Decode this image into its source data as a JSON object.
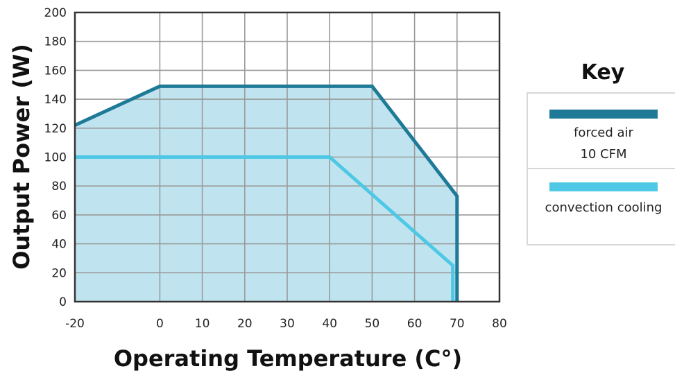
{
  "chart_data": {
    "type": "area",
    "xlabel": "Operating Temperature (C°)",
    "ylabel": "Output Power (W)",
    "xlim": [
      -20,
      80
    ],
    "ylim": [
      0,
      200
    ],
    "x_ticks": [
      "-20",
      "0",
      "10",
      "20",
      "30",
      "40",
      "50",
      "60",
      "70",
      "80"
    ],
    "y_ticks": [
      "0",
      "20",
      "40",
      "60",
      "80",
      "100",
      "120",
      "140",
      "160",
      "180",
      "200"
    ],
    "grid": true,
    "legend_placement": "right",
    "series": [
      {
        "key_line1": "forced air",
        "key_line2": "10 CFM",
        "color": "#1e7a96",
        "points": [
          [
            -20,
            122
          ],
          [
            0,
            149
          ],
          [
            50,
            149
          ],
          [
            70,
            73
          ],
          [
            70,
            0
          ]
        ]
      },
      {
        "key_line1": "convection cooling",
        "key_line2": "",
        "color": "#4ec8e4",
        "points": [
          [
            -20,
            100
          ],
          [
            40,
            100
          ],
          [
            69,
            25
          ],
          [
            69,
            0
          ]
        ]
      }
    ],
    "fill_color": "#bfe4ef"
  },
  "legend": {
    "title": "Key"
  }
}
